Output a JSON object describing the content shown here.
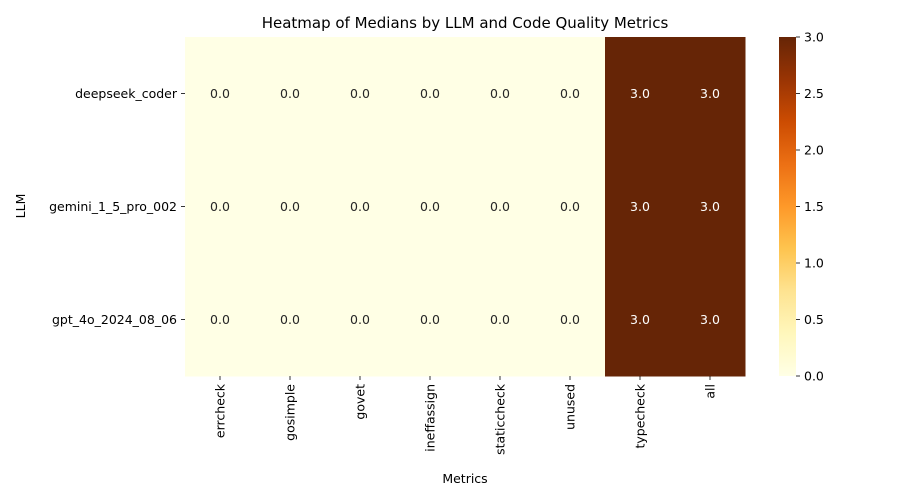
{
  "chart_data": {
    "type": "heatmap",
    "title": "Heatmap of Medians by LLM and Code Quality Metrics",
    "xlabel": "Metrics",
    "ylabel": "LLM",
    "columns": [
      "errcheck",
      "gosimple",
      "govet",
      "ineffassign",
      "staticcheck",
      "unused",
      "typecheck",
      "all"
    ],
    "rows": [
      "deepseek_coder",
      "gemini_1_5_pro_002",
      "gpt_4o_2024_08_06"
    ],
    "values": [
      [
        0.0,
        0.0,
        0.0,
        0.0,
        0.0,
        0.0,
        3.0,
        3.0
      ],
      [
        0.0,
        0.0,
        0.0,
        0.0,
        0.0,
        0.0,
        3.0,
        3.0
      ],
      [
        0.0,
        0.0,
        0.0,
        0.0,
        0.0,
        0.0,
        3.0,
        3.0
      ]
    ],
    "value_format": "0.0",
    "colorbar": {
      "range": [
        0.0,
        3.0
      ],
      "ticks": [
        "0.0",
        "0.5",
        "1.0",
        "1.5",
        "2.0",
        "2.5",
        "3.0"
      ],
      "colormap": "YlOrBr",
      "low_color": "#ffffe5",
      "high_color": "#662506"
    }
  }
}
